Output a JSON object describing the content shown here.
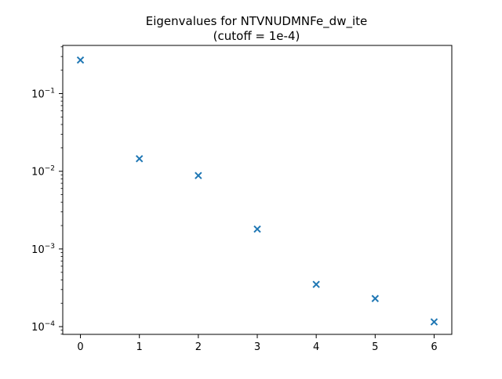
{
  "chart_data": {
    "type": "scatter",
    "title": "Eigenvalues for NTVNUDMNFe_dw_ite",
    "subtitle": "(cutoff = 1e-4)",
    "xlabel": "",
    "ylabel": "",
    "x": [
      0,
      1,
      2,
      3,
      4,
      5,
      6
    ],
    "series": [
      {
        "values": [
          0.27,
          0.0145,
          0.0088,
          0.0018,
          0.00035,
          0.00023,
          0.000115
        ]
      }
    ],
    "xlim": [
      -0.3,
      6.3
    ],
    "ylim": [
      7.95e-05,
      0.417
    ],
    "yscale": "log",
    "marker": "x",
    "color": "#1f77b4",
    "xticks": [
      0,
      1,
      2,
      3,
      4,
      5,
      6
    ],
    "xtick_labels": [
      "0",
      "1",
      "2",
      "3",
      "4",
      "5",
      "6"
    ],
    "yticks": [
      0.1,
      0.01,
      0.001,
      0.0001
    ],
    "ytick_labels": [
      {
        "base": "10",
        "exp": "−1"
      },
      {
        "base": "10",
        "exp": "−2"
      },
      {
        "base": "10",
        "exp": "−3"
      },
      {
        "base": "10",
        "exp": "−4"
      }
    ],
    "grid": false,
    "legend": "none"
  }
}
